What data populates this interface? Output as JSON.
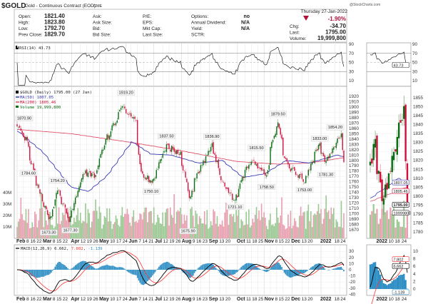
{
  "header": {
    "symbol": "$GOLD",
    "name": "Gold - Continuous Contract (EOD)",
    "exchange": "CME",
    "watermark": "@StockCharts.com",
    "date": "Thursday  27-Jan-2022",
    "pct_change": "-1.90%",
    "fields": [
      {
        "label": "Open:",
        "value": "1821.40"
      },
      {
        "label": "High:",
        "value": "1823.80"
      },
      {
        "label": "Low:",
        "value": "1792.70"
      },
      {
        "label": "Prev Close:",
        "value": "1829.70"
      }
    ],
    "col2": [
      "Ask:",
      "Ask Size:",
      "Bid:",
      "Bid Size:"
    ],
    "col3": [
      "P/E:",
      "EPS:",
      "Mkt Cap:",
      "Last Size:"
    ],
    "col4": [
      {
        "label": "Options:",
        "value": "no"
      },
      {
        "label": "Annual Dividend:",
        "value": "N/A"
      },
      {
        "label": "Yield:",
        "value": "N/A"
      },
      {
        "label": "SCTR:",
        "value": ""
      }
    ],
    "right": [
      {
        "label": "Chg:",
        "value": "-34.70"
      },
      {
        "label": "Last:",
        "value": "1795.00"
      },
      {
        "label": "Volume:",
        "value": "19,999,800"
      }
    ],
    "down_color": "#b0103a"
  },
  "chart_data": {
    "type": "candlestick",
    "rsi": {
      "legend": "RSI(14) 43.73",
      "last_tag": "43.73",
      "ticks": [
        "90",
        "70",
        "50",
        "30",
        "10"
      ]
    },
    "price": {
      "legend": "$GOLD (Daily) 1795.00 (27 Jan)",
      "ma50_legend": "MA(50) 1807.05",
      "ma200_legend": "MA(200) 1805.46",
      "volume_legend": "Volume 19,999,800",
      "ylim": [
        1670,
        1920
      ],
      "ticks": [
        "1920",
        "1910",
        "1900",
        "1890",
        "1880",
        "1870",
        "1860",
        "1850",
        "1840",
        "1830",
        "1820",
        "1810",
        "1800",
        "1790",
        "1780",
        "1770",
        "1760",
        "1750",
        "1740",
        "1730",
        "1720",
        "1710",
        "1700",
        "1690",
        "1680",
        "1670"
      ],
      "volume_ticks": [
        "40M",
        "30M",
        "20M",
        "10M"
      ],
      "close_path": [
        [
          "2021-02-01",
          1862
        ],
        [
          "2021-02-10",
          1840
        ],
        [
          "2021-02-19",
          1775
        ],
        [
          "2021-02-26",
          1735
        ],
        [
          "2021-03-08",
          1685
        ],
        [
          "2021-03-17",
          1745
        ],
        [
          "2021-03-30",
          1688
        ],
        [
          "2021-04-08",
          1745
        ],
        [
          "2021-04-16",
          1778
        ],
        [
          "2021-04-28",
          1772
        ],
        [
          "2021-05-07",
          1830
        ],
        [
          "2021-05-18",
          1868
        ],
        [
          "2021-05-26",
          1898
        ],
        [
          "2021-06-04",
          1890
        ],
        [
          "2021-06-11",
          1878
        ],
        [
          "2021-06-17",
          1780
        ],
        [
          "2021-06-29",
          1757
        ],
        [
          "2021-07-15",
          1828
        ],
        [
          "2021-07-30",
          1812
        ],
        [
          "2021-08-06",
          1762
        ],
        [
          "2021-08-10",
          1732
        ],
        [
          "2021-08-20",
          1782
        ],
        [
          "2021-09-03",
          1828
        ],
        [
          "2021-09-16",
          1758
        ],
        [
          "2021-09-29",
          1726
        ],
        [
          "2021-10-14",
          1796
        ],
        [
          "2021-10-22",
          1798
        ],
        [
          "2021-11-03",
          1768
        ],
        [
          "2021-11-09",
          1830
        ],
        [
          "2021-11-16",
          1866
        ],
        [
          "2021-11-22",
          1808
        ],
        [
          "2021-12-01",
          1782
        ],
        [
          "2021-12-15",
          1762
        ],
        [
          "2021-12-31",
          1828
        ],
        [
          "2022-01-07",
          1795
        ],
        [
          "2022-01-14",
          1818
        ],
        [
          "2022-01-25",
          1850
        ],
        [
          "2022-01-27",
          1795
        ]
      ],
      "ma50_path": [
        [
          "2021-02-01",
          1855
        ],
        [
          "2021-03-01",
          1815
        ],
        [
          "2021-04-01",
          1750
        ],
        [
          "2021-04-20",
          1742
        ],
        [
          "2021-05-10",
          1770
        ],
        [
          "2021-06-07",
          1835
        ],
        [
          "2021-06-28",
          1812
        ],
        [
          "2021-07-20",
          1810
        ],
        [
          "2021-08-20",
          1795
        ],
        [
          "2021-09-15",
          1800
        ],
        [
          "2021-10-08",
          1768
        ],
        [
          "2021-11-01",
          1775
        ],
        [
          "2021-11-25",
          1800
        ],
        [
          "2021-12-20",
          1795
        ],
        [
          "2022-01-20",
          1810
        ],
        [
          "2022-01-27",
          1807
        ]
      ],
      "ma200_path": [
        [
          "2021-02-01",
          1858
        ],
        [
          "2021-04-01",
          1850
        ],
        [
          "2021-06-01",
          1835
        ],
        [
          "2021-08-01",
          1818
        ],
        [
          "2021-10-01",
          1798
        ],
        [
          "2021-11-15",
          1793
        ],
        [
          "2021-12-20",
          1795
        ],
        [
          "2022-01-27",
          1805
        ]
      ],
      "annotations": [
        {
          "date": "2021-02-01",
          "value": "1870.90",
          "pos": "above"
        },
        {
          "date": "2021-02-12",
          "value": "1784.60",
          "pos": "below"
        },
        {
          "date": "2021-03-08",
          "value": "1673.30",
          "pos": "below"
        },
        {
          "date": "2021-03-17",
          "value": "1754.20",
          "pos": "above"
        },
        {
          "date": "2021-03-31",
          "value": "1677.30",
          "pos": "below"
        },
        {
          "date": "2021-06-01",
          "value": "1919.20",
          "pos": "above"
        },
        {
          "date": "2021-06-29",
          "value": "1750.10",
          "pos": "below"
        },
        {
          "date": "2021-07-15",
          "value": "1837.50",
          "pos": "above"
        },
        {
          "date": "2021-08-09",
          "value": "1675.90",
          "pos": "below"
        },
        {
          "date": "2021-09-03",
          "value": "1836.90",
          "pos": "above"
        },
        {
          "date": "2021-09-29",
          "value": "1721.10",
          "pos": "below"
        },
        {
          "date": "2021-10-22",
          "value": "1815.50",
          "pos": "above"
        },
        {
          "date": "2021-11-03",
          "value": "1758.50",
          "pos": "below"
        },
        {
          "date": "2021-11-16",
          "value": "1879.50",
          "pos": "above"
        },
        {
          "date": "2021-12-15",
          "value": "1753.00",
          "pos": "below"
        },
        {
          "date": "2021-12-31",
          "value": "1833.00",
          "pos": "above"
        },
        {
          "date": "2022-01-07",
          "value": "1781.30",
          "pos": "below"
        },
        {
          "date": "2022-01-25",
          "value": "1854.20",
          "pos": "above"
        }
      ],
      "date_ticks": [
        [
          "Feb",
          "2021-02-01",
          1
        ],
        [
          "8",
          "2021-02-08",
          0
        ],
        [
          "16",
          "2021-02-16",
          0
        ],
        [
          "22",
          "2021-02-22",
          0
        ],
        [
          "Mar",
          "2021-03-01",
          1
        ],
        [
          "8",
          "2021-03-08",
          0
        ],
        [
          "15",
          "2021-03-15",
          0
        ],
        [
          "22",
          "2021-03-22",
          0
        ],
        [
          "Apr",
          "2021-04-01",
          1
        ],
        [
          "12",
          "2021-04-12",
          0
        ],
        [
          "19",
          "2021-04-19",
          0
        ],
        [
          "26",
          "2021-04-26",
          0
        ],
        [
          "May",
          "2021-05-03",
          1
        ],
        [
          "10",
          "2021-05-10",
          0
        ],
        [
          "17",
          "2021-05-17",
          0
        ],
        [
          "24",
          "2021-05-24",
          0
        ],
        [
          "Jun",
          "2021-06-01",
          1
        ],
        [
          "7",
          "2021-06-07",
          0
        ],
        [
          "14",
          "2021-06-14",
          0
        ],
        [
          "21",
          "2021-06-21",
          0
        ],
        [
          "Jul",
          "2021-07-01",
          1
        ],
        [
          "12",
          "2021-07-12",
          0
        ],
        [
          "19",
          "2021-07-19",
          0
        ],
        [
          "26",
          "2021-07-26",
          0
        ],
        [
          "Aug",
          "2021-08-02",
          1
        ],
        [
          "9",
          "2021-08-09",
          0
        ],
        [
          "16",
          "2021-08-16",
          0
        ],
        [
          "23",
          "2021-08-23",
          0
        ],
        [
          "Sep",
          "2021-09-01",
          1
        ],
        [
          "13",
          "2021-09-13",
          0
        ],
        [
          "20",
          "2021-09-20",
          0
        ],
        [
          "Oct",
          "2021-10-01",
          1
        ],
        [
          "11",
          "2021-10-11",
          0
        ],
        [
          "18",
          "2021-10-18",
          0
        ],
        [
          "25",
          "2021-10-25",
          0
        ],
        [
          "Nov",
          "2021-11-01",
          1
        ],
        [
          "8",
          "2021-11-08",
          0
        ],
        [
          "15",
          "2021-11-15",
          0
        ],
        [
          "22",
          "2021-11-22",
          0
        ],
        [
          "Dec",
          "2021-12-01",
          1
        ],
        [
          "13",
          "2021-12-13",
          0
        ],
        [
          "20",
          "2021-12-20",
          0
        ],
        [
          "2022",
          "2022-01-03",
          1
        ],
        [
          "18",
          "2022-01-18",
          0
        ],
        [
          "24",
          "2022-01-24",
          0
        ]
      ]
    },
    "mini": {
      "ticks": [
        "1855",
        "1850",
        "1845",
        "1840",
        "1835",
        "1830",
        "1825",
        "1820",
        "1815",
        "1810",
        "1805",
        "1800",
        "1795",
        "1790",
        "1785",
        "1780"
      ],
      "ylim": [
        1780,
        1855
      ],
      "tags": {
        "ma50": "1807.05",
        "ma200": "1805.46",
        "last": "1795.00",
        "volume": "19999800"
      },
      "date_ticks": [
        [
          "2022",
          "2022-01-03",
          1
        ],
        [
          "10",
          "2022-01-10",
          0
        ],
        [
          "18",
          "2022-01-18",
          0
        ],
        [
          "24",
          "2022-01-24",
          0
        ]
      ],
      "macd_ticks": [
        "10",
        "8",
        "6",
        "4",
        "2",
        "0"
      ],
      "macd_tags": {
        "signal": "7.802",
        "macd": "6.662",
        "hist": "-1.139"
      }
    },
    "macd": {
      "legend_name": "MACD(12,26,9)",
      "macd": "6.662",
      "signal": "7.802",
      "hist": "-1.139",
      "ticks": [
        "30",
        "20",
        "10",
        "0",
        "-10",
        "-20",
        "-30",
        "-40"
      ],
      "colors": {
        "macd": "#000000",
        "signal": "#ff3333",
        "hist": "#2f8fc4"
      }
    },
    "colors": {
      "up": "#0a6b12",
      "down": "#d0103a",
      "ma50": "#3a3ab8",
      "ma200": "#e0506a",
      "vol_up": "#9cc894",
      "vol_down": "#e8a0b0"
    }
  }
}
